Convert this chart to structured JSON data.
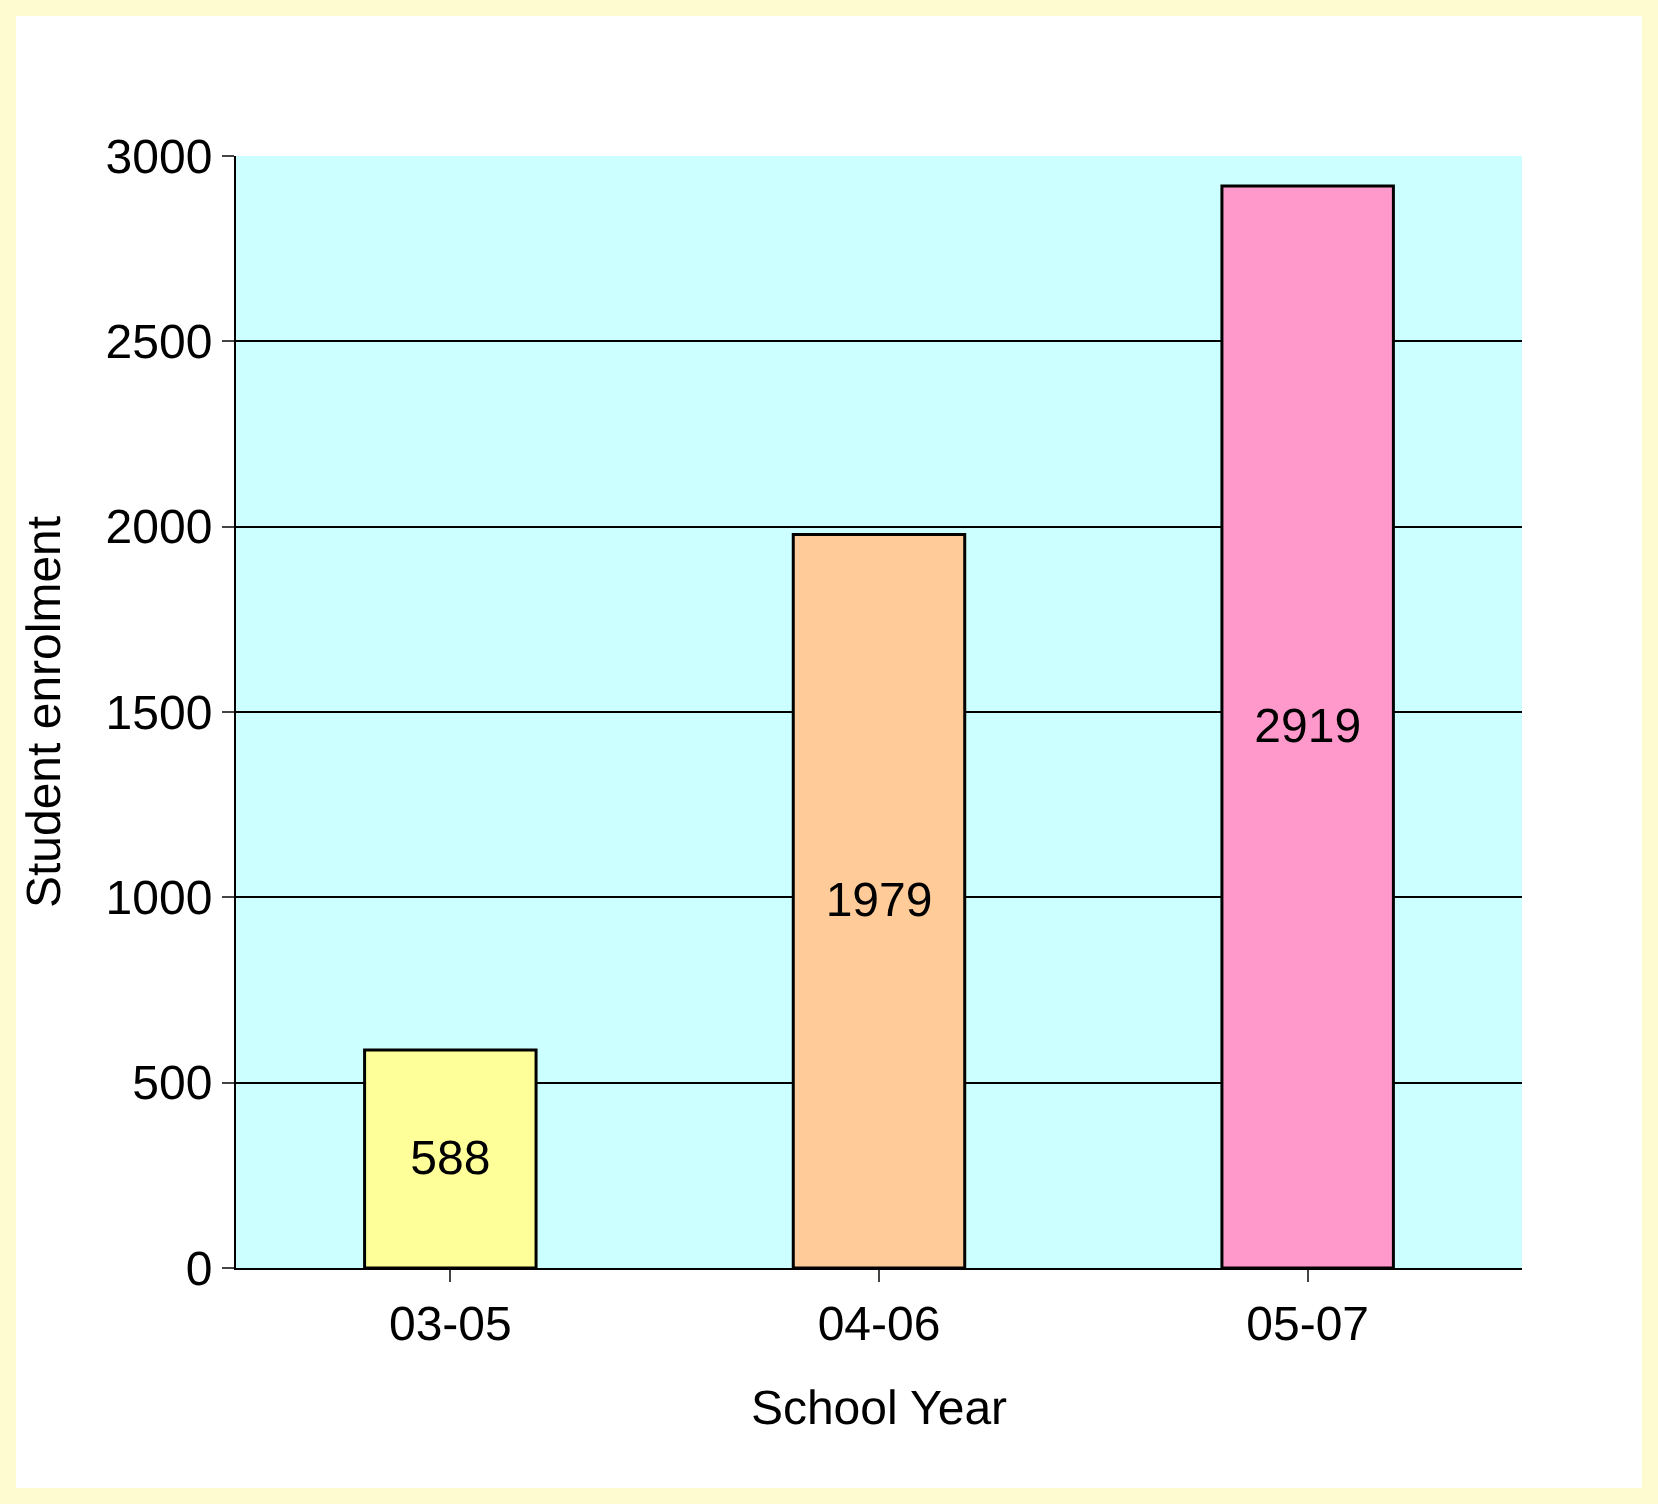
{
  "chart_data": {
    "type": "bar",
    "xlabel": "School Year",
    "ylabel": "Student enrolment",
    "categories": [
      "03-05",
      "04-06",
      "05-07"
    ],
    "values": [
      588,
      1979,
      2919
    ],
    "colors": [
      "#ffff99",
      "#ffcc99",
      "#ff99cc"
    ],
    "ylim": [
      0,
      3000
    ],
    "yticks": [
      0,
      500,
      1000,
      1500,
      2000,
      2500,
      3000
    ],
    "grid": "y",
    "data_labels": true
  }
}
